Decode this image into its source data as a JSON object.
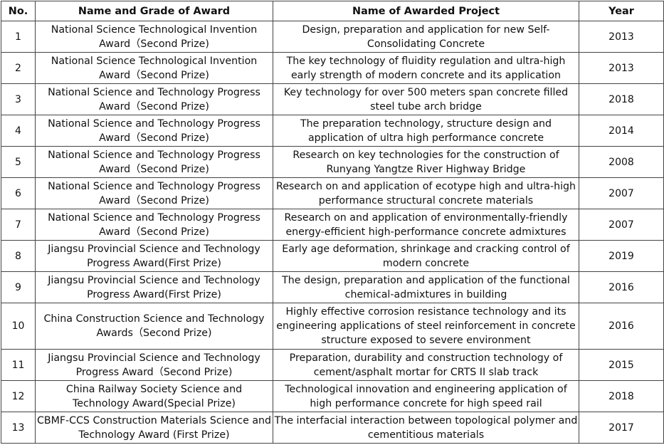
{
  "table": {
    "headers": {
      "no": "No.",
      "name": "Name and Grade of Award",
      "project": "Name of Awarded Project",
      "year": "Year"
    },
    "rows": [
      {
        "no": "1",
        "name": "National Science Technological Invention Award（Second Prize)",
        "project": "Design, preparation and application for new Self-Consolidating Concrete",
        "year": "2013"
      },
      {
        "no": "2",
        "name": "National Science Technological Invention Award（Second Prize)",
        "project": "The key technology of fluidity regulation and ultra-high early strength of modern concrete and its application",
        "year": "2013"
      },
      {
        "no": "3",
        "name": "National Science and Technology Progress Award（Second Prize)",
        "project": "Key technology for over 500 meters span concrete filled steel tube arch bridge",
        "year": "2018"
      },
      {
        "no": "4",
        "name": "National Science and Technology Progress Award（Second Prize)",
        "project": "The preparation technology, structure design and application of ultra high performance concrete",
        "year": "2014"
      },
      {
        "no": "5",
        "name": "National Science and Technology Progress Award（Second Prize)",
        "project": "Research on key technologies for the construction of Runyang Yangtze River Highway Bridge",
        "year": "2008"
      },
      {
        "no": "6",
        "name": "National Science and Technology Progress Award（Second Prize)",
        "project": "Research on and application of ecotype high and ultra-high performance structural concrete materials",
        "year": "2007"
      },
      {
        "no": "7",
        "name": "National Science and Technology Progress Award（Second Prize)",
        "project": "Research on and application of environmentally-friendly energy-efficient high-performance concrete admixtures",
        "year": "2007"
      },
      {
        "no": "8",
        "name": "Jiangsu Provincial Science and Technology Progress Award(First Prize)",
        "project": "Early age deformation, shrinkage and cracking control of modern concrete",
        "year": "2019"
      },
      {
        "no": "9",
        "name": "Jiangsu Provincial Science and Technology Progress Award(First Prize)",
        "project": "The design,  preparation and application of the functional chemical-admixtures in building",
        "year": "2016"
      },
      {
        "no": "10",
        "name": "China Construction Science and Technology Awards（Second Prize)",
        "project": "Highly effective corrosion resistance technology and its engineering applications of steel reinforcement in concrete structure exposed to severe environment",
        "year": "2016"
      },
      {
        "no": "11",
        "name": "Jiangsu Provincial Science and Technology Progress Award（Second Prize)",
        "project": "Preparation, durability and construction technology of cement/asphalt mortar for CRTS II slab track",
        "year": "2015"
      },
      {
        "no": "12",
        "name": "China Railway Society Science and Technology Award(Special Prize)",
        "project": "Technological innovation and engineering application of high performance concrete for high speed rail",
        "year": "2018"
      },
      {
        "no": "13",
        "name": "CBMF-CCS Construction Materials Science and Technology Award (First Prize)",
        "project": "The interfacial interaction between topological polymer and cementitious materials",
        "year": "2017"
      }
    ]
  }
}
